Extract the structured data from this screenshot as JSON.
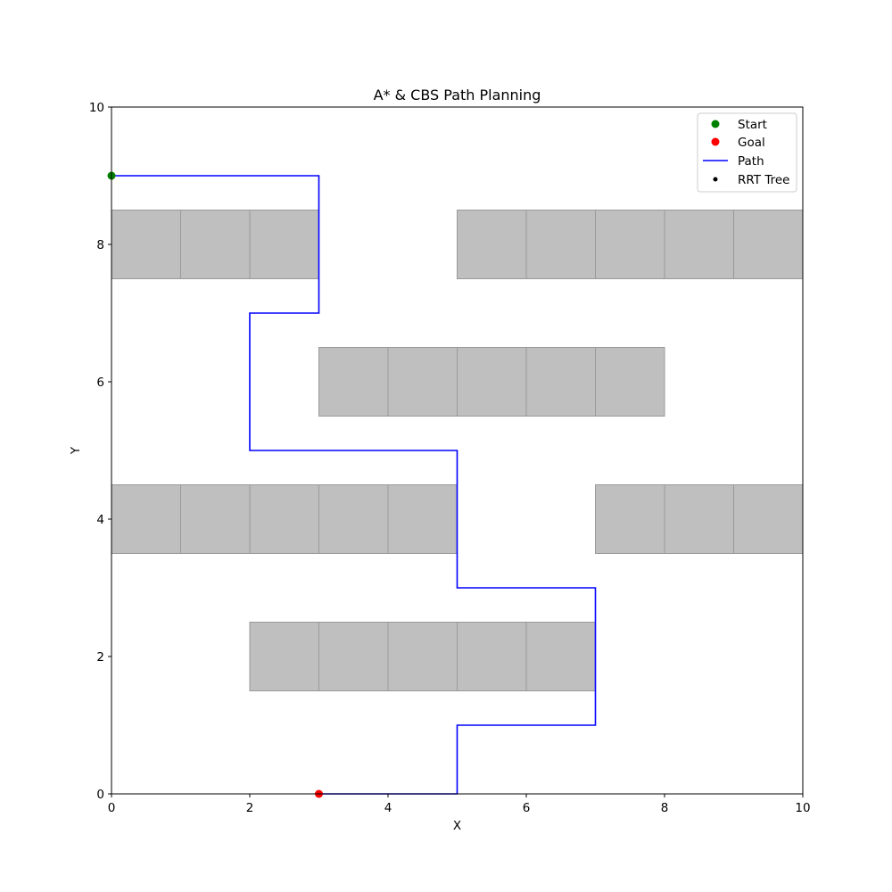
{
  "chart_data": {
    "type": "scatter",
    "title": "A* & CBS Path Planning",
    "xlabel": "X",
    "ylabel": "Y",
    "xlim": [
      0,
      10
    ],
    "ylim": [
      0,
      10
    ],
    "xticks": [
      "0",
      "2",
      "4",
      "6",
      "8",
      "10"
    ],
    "yticks": [
      "0",
      "2",
      "4",
      "6",
      "8",
      "10"
    ],
    "grid": false,
    "legend_position": "top-right",
    "legend": [
      {
        "label": "Start",
        "kind": "marker",
        "color": "#008000"
      },
      {
        "label": "Goal",
        "kind": "marker",
        "color": "#ff0000"
      },
      {
        "label": "Path",
        "kind": "line",
        "color": "#0000ff"
      },
      {
        "label": "RRT Tree",
        "kind": "small-marker",
        "color": "#000000"
      }
    ],
    "obstacle_color": "#bfbfbf",
    "obstacle_edge_color": "#999999",
    "obstacles": [
      {
        "x": 0,
        "y": 8
      },
      {
        "x": 1,
        "y": 8
      },
      {
        "x": 2,
        "y": 8
      },
      {
        "x": 5,
        "y": 8
      },
      {
        "x": 6,
        "y": 8
      },
      {
        "x": 7,
        "y": 8
      },
      {
        "x": 8,
        "y": 8
      },
      {
        "x": 9,
        "y": 8
      },
      {
        "x": 3,
        "y": 6
      },
      {
        "x": 4,
        "y": 6
      },
      {
        "x": 5,
        "y": 6
      },
      {
        "x": 6,
        "y": 6
      },
      {
        "x": 7,
        "y": 6
      },
      {
        "x": 0,
        "y": 4
      },
      {
        "x": 1,
        "y": 4
      },
      {
        "x": 2,
        "y": 4
      },
      {
        "x": 3,
        "y": 4
      },
      {
        "x": 4,
        "y": 4
      },
      {
        "x": 7,
        "y": 4
      },
      {
        "x": 8,
        "y": 4
      },
      {
        "x": 9,
        "y": 4
      },
      {
        "x": 2,
        "y": 2
      },
      {
        "x": 3,
        "y": 2
      },
      {
        "x": 4,
        "y": 2
      },
      {
        "x": 5,
        "y": 2
      },
      {
        "x": 6,
        "y": 2
      }
    ],
    "path": {
      "color": "#0000ff",
      "points": [
        [
          0,
          9
        ],
        [
          3,
          9
        ],
        [
          3,
          7
        ],
        [
          2,
          7
        ],
        [
          2,
          5
        ],
        [
          5,
          5
        ],
        [
          5,
          3
        ],
        [
          7,
          3
        ],
        [
          7,
          1
        ],
        [
          5,
          1
        ],
        [
          5,
          0
        ],
        [
          3,
          0
        ]
      ]
    },
    "start": {
      "x": 0,
      "y": 9,
      "color": "#008000"
    },
    "goal": {
      "x": 3,
      "y": 0,
      "color": "#ff0000"
    }
  }
}
